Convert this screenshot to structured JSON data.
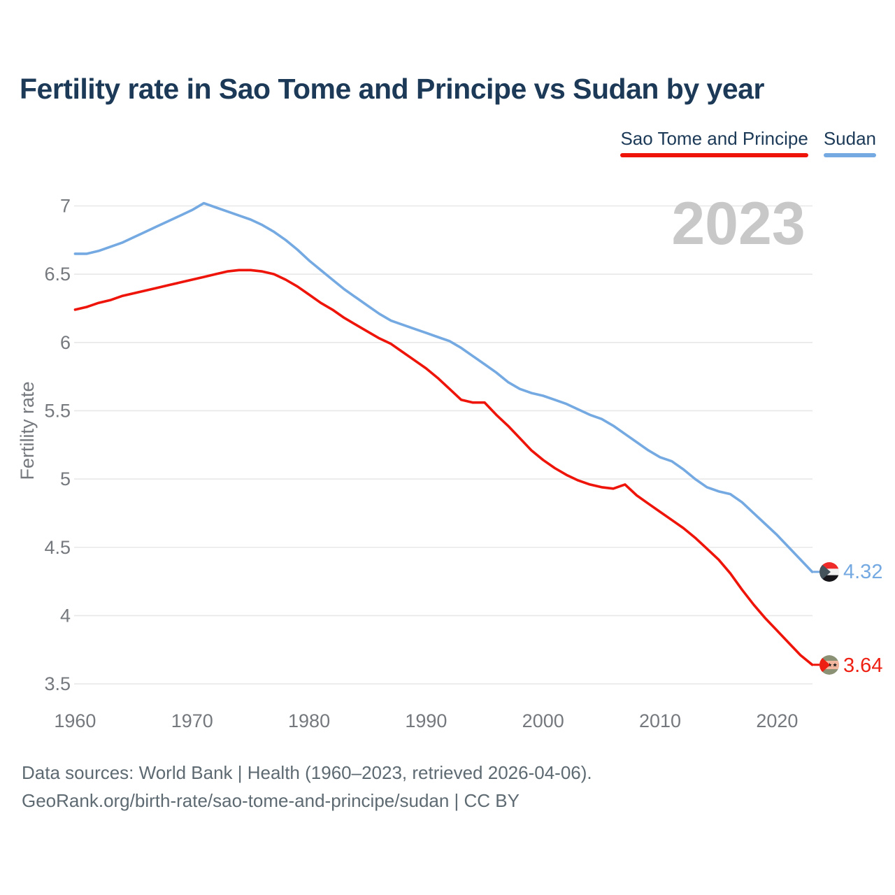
{
  "title": "Fertility rate in Sao Tome and Principe vs Sudan by year",
  "watermark": "2023",
  "legend": [
    {
      "label": "Sao Tome and Principe",
      "color": "#ee1409"
    },
    {
      "label": "Sudan",
      "color": "#74a9e2"
    }
  ],
  "footer": {
    "line1": "Data sources: World Bank | Health (1960–2023, retrieved 2026-04-06).",
    "line2": "GeoRank.org/birth-rate/sao-tome-and-principe/sudan | CC BY"
  },
  "chart_data": {
    "type": "line",
    "title": "Fertility rate in Sao Tome and Principe vs Sudan by year",
    "xlabel": "",
    "ylabel": "Fertility rate",
    "ylim": [
      3.5,
      7.0
    ],
    "xlim": [
      1960,
      2023
    ],
    "grid": "horizontal",
    "legend_position": "top-right",
    "yticks": [
      3.5,
      4,
      4.5,
      5,
      5.5,
      6,
      6.5,
      7
    ],
    "xticks": [
      1960,
      1970,
      1980,
      1990,
      2000,
      2010,
      2020
    ],
    "x": [
      1960,
      1961,
      1962,
      1963,
      1964,
      1965,
      1966,
      1967,
      1968,
      1969,
      1970,
      1971,
      1972,
      1973,
      1974,
      1975,
      1976,
      1977,
      1978,
      1979,
      1980,
      1981,
      1982,
      1983,
      1984,
      1985,
      1986,
      1987,
      1988,
      1989,
      1990,
      1991,
      1992,
      1993,
      1994,
      1995,
      1996,
      1997,
      1998,
      1999,
      2000,
      2001,
      2002,
      2003,
      2004,
      2005,
      2006,
      2007,
      2008,
      2009,
      2010,
      2011,
      2012,
      2013,
      2014,
      2015,
      2016,
      2017,
      2018,
      2019,
      2020,
      2021,
      2022,
      2023
    ],
    "series": [
      {
        "name": "Sao Tome and Principe",
        "color": "#ee1409",
        "end_label": "3.64",
        "end_value": 3.64,
        "flag": "sao-tome-and-principe-flag",
        "values": [
          6.24,
          6.26,
          6.29,
          6.31,
          6.34,
          6.36,
          6.38,
          6.4,
          6.42,
          6.44,
          6.46,
          6.48,
          6.5,
          6.52,
          6.53,
          6.53,
          6.52,
          6.5,
          6.46,
          6.41,
          6.35,
          6.29,
          6.24,
          6.18,
          6.13,
          6.08,
          6.03,
          5.99,
          5.93,
          5.87,
          5.81,
          5.74,
          5.66,
          5.58,
          5.56,
          5.56,
          5.47,
          5.39,
          5.3,
          5.21,
          5.14,
          5.08,
          5.03,
          4.99,
          4.96,
          4.94,
          4.93,
          4.96,
          4.88,
          4.82,
          4.76,
          4.7,
          4.64,
          4.57,
          4.49,
          4.41,
          4.31,
          4.19,
          4.08,
          3.98,
          3.89,
          3.8,
          3.71,
          3.64
        ]
      },
      {
        "name": "Sudan",
        "color": "#74a9e2",
        "end_label": "4.32",
        "end_value": 4.32,
        "flag": "sudan-flag",
        "values": [
          6.65,
          6.65,
          6.67,
          6.7,
          6.73,
          6.77,
          6.81,
          6.85,
          6.89,
          6.93,
          6.97,
          7.02,
          6.99,
          6.96,
          6.93,
          6.9,
          6.86,
          6.81,
          6.75,
          6.68,
          6.6,
          6.53,
          6.46,
          6.39,
          6.33,
          6.27,
          6.21,
          6.16,
          6.13,
          6.1,
          6.07,
          6.04,
          6.01,
          5.96,
          5.9,
          5.84,
          5.78,
          5.71,
          5.66,
          5.63,
          5.61,
          5.58,
          5.55,
          5.51,
          5.47,
          5.44,
          5.39,
          5.33,
          5.27,
          5.21,
          5.16,
          5.13,
          5.07,
          5.0,
          4.94,
          4.91,
          4.89,
          4.83,
          4.75,
          4.67,
          4.59,
          4.5,
          4.41,
          4.32
        ]
      }
    ]
  }
}
